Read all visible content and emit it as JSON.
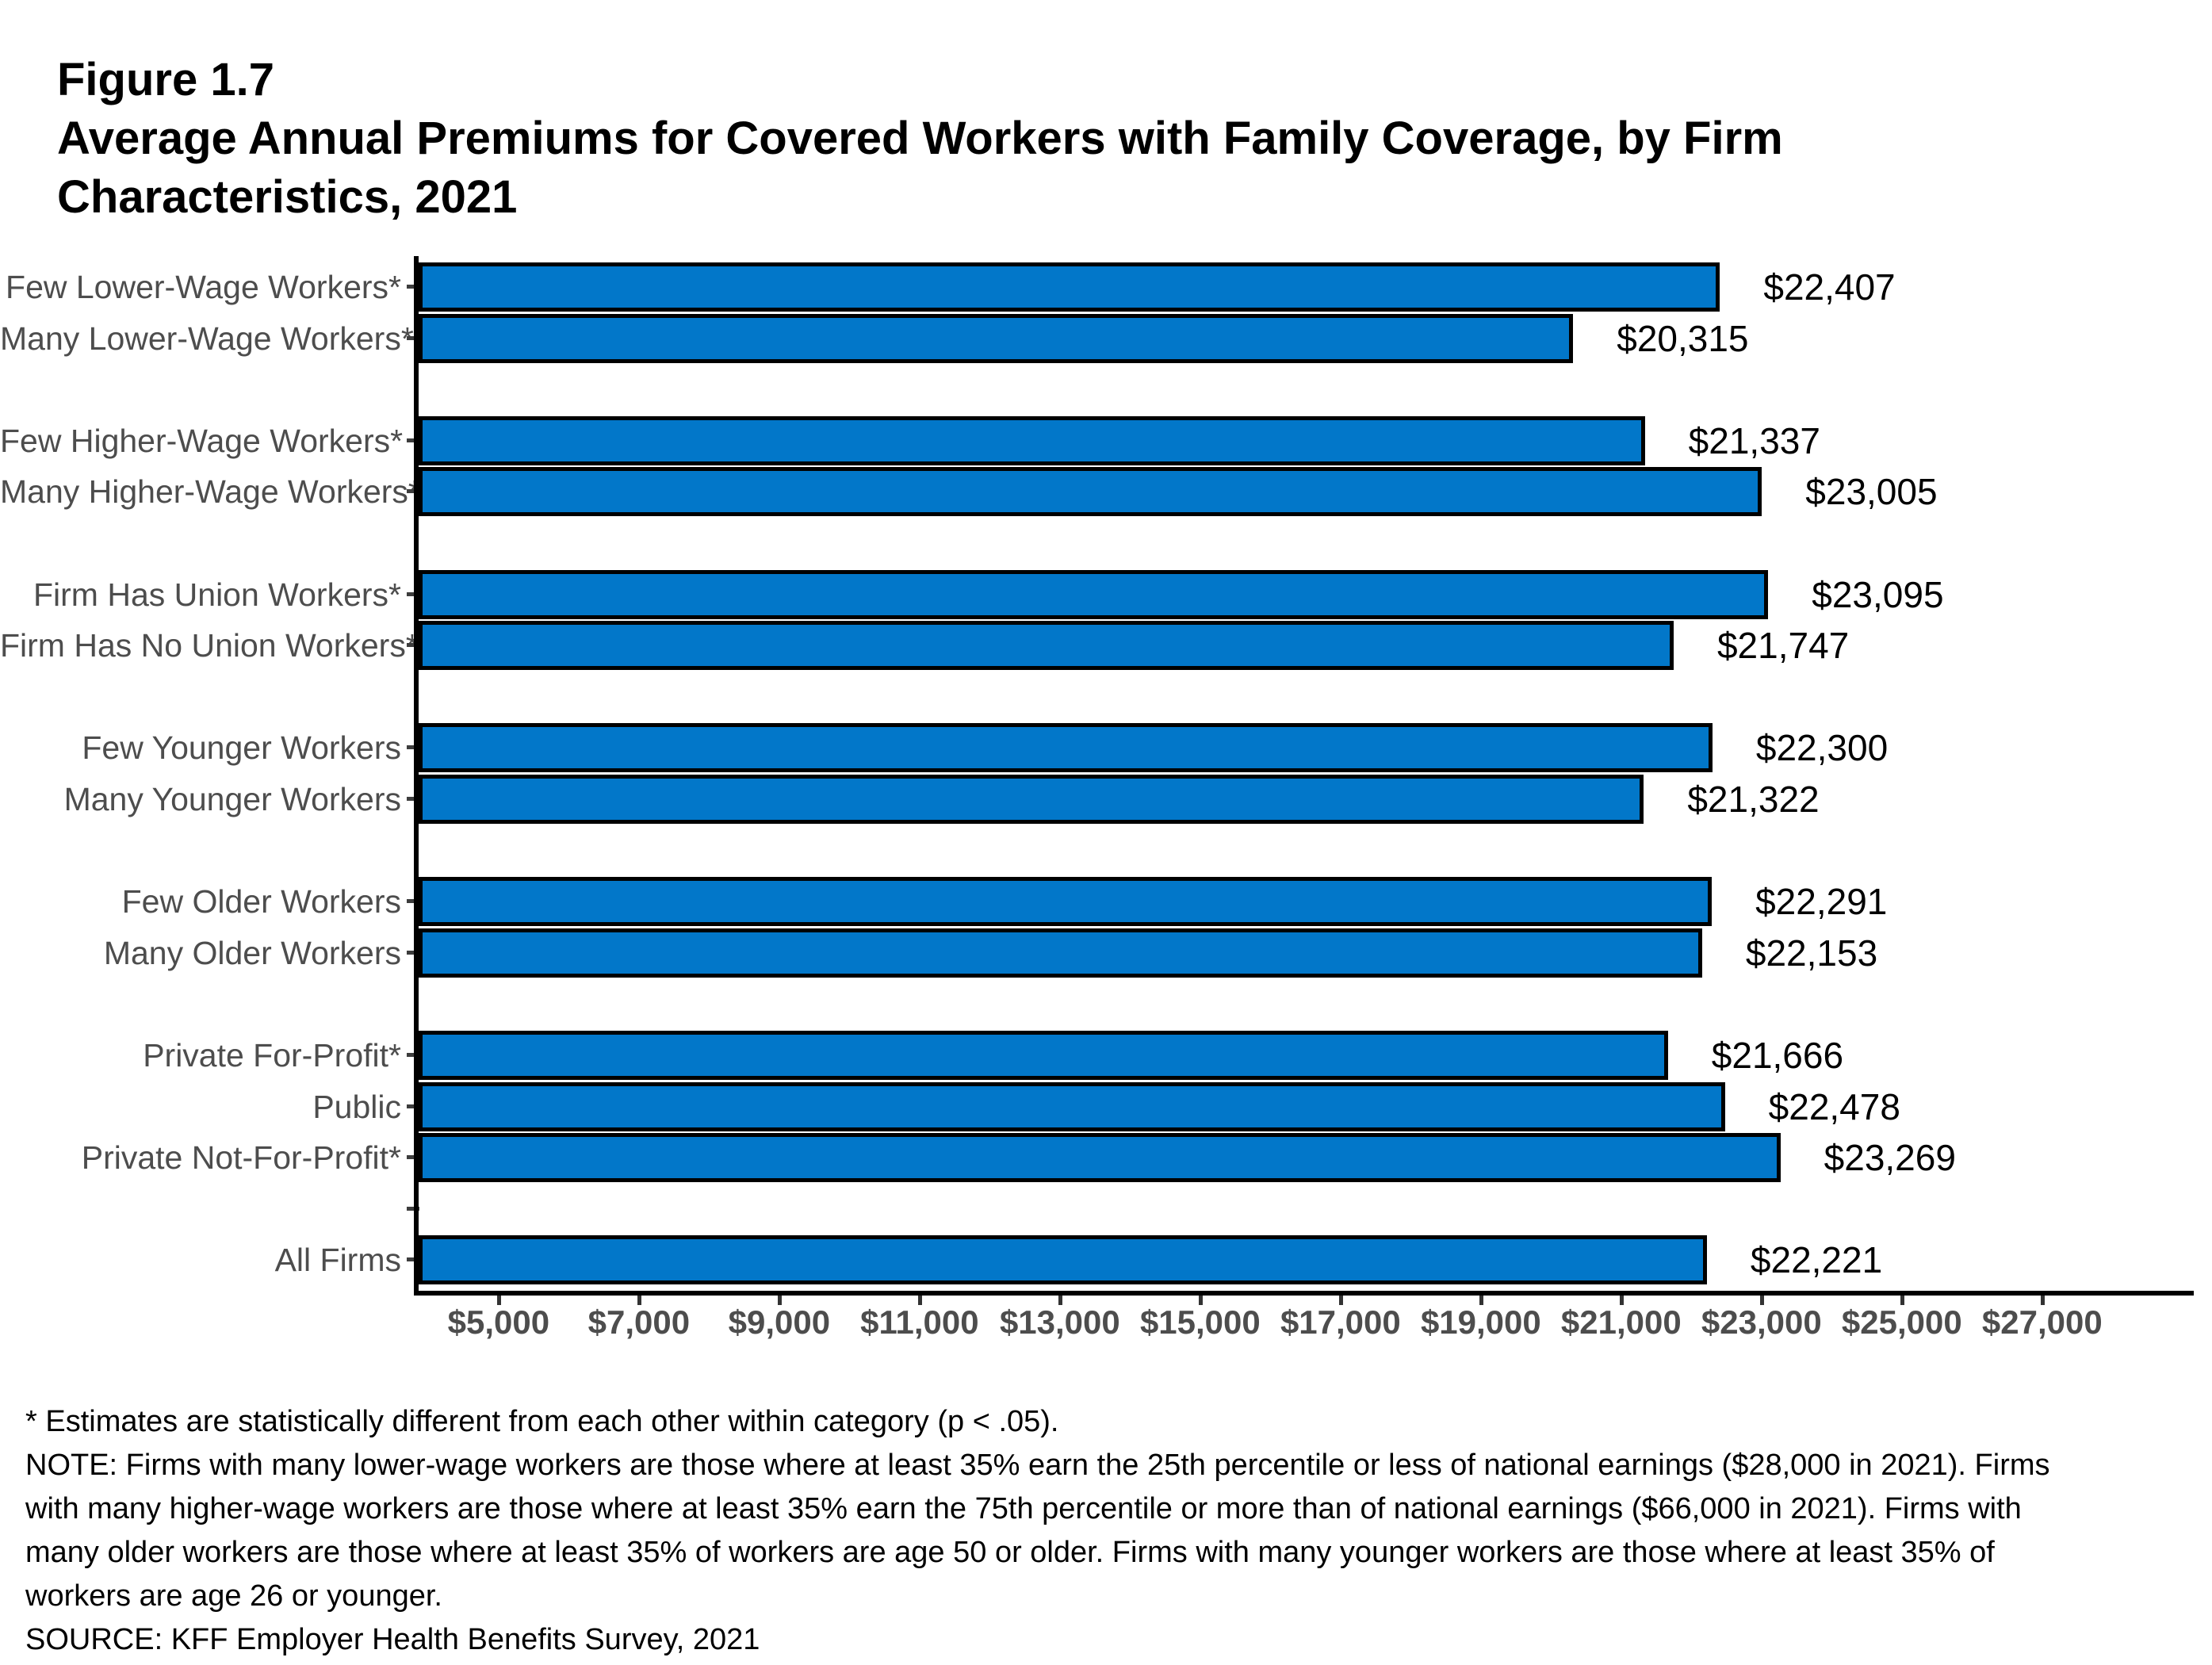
{
  "header": {
    "figure_label": "Figure 1.7",
    "title_lines": [
      "Average Annual Premiums for Covered Workers with Family Coverage, by Firm",
      "Characteristics, 2021"
    ]
  },
  "chart_data": {
    "type": "bar",
    "orientation": "horizontal",
    "title": "Average Annual Premiums for Covered Workers with Family Coverage, by Firm Characteristics, 2021",
    "xlabel": "",
    "ylabel": "",
    "grid": false,
    "x_domain": [
      3860,
      29160
    ],
    "bar_color": "#0277C9",
    "bar_border_color": "#000000",
    "axis_label_color": "#4D4D4D",
    "x_ticks": [
      {
        "label": "$5,000",
        "value": 5000
      },
      {
        "label": "$7,000",
        "value": 7000
      },
      {
        "label": "$9,000",
        "value": 9000
      },
      {
        "label": "$11,000",
        "value": 11000
      },
      {
        "label": "$13,000",
        "value": 13000
      },
      {
        "label": "$15,000",
        "value": 15000
      },
      {
        "label": "$17,000",
        "value": 17000
      },
      {
        "label": "$19,000",
        "value": 19000
      },
      {
        "label": "$21,000",
        "value": 21000
      },
      {
        "label": "$23,000",
        "value": 23000
      },
      {
        "label": "$25,000",
        "value": 25000
      },
      {
        "label": "$27,000",
        "value": 27000
      }
    ],
    "rows": [
      {
        "label": "Few Lower-Wage Workers*",
        "value": 22407,
        "value_label": "$22,407",
        "tick": true
      },
      {
        "label": "Many Lower-Wage Workers*",
        "value": 20315,
        "value_label": "$20,315",
        "tick": true
      },
      {
        "label": "",
        "value": null,
        "value_label": "",
        "tick": false
      },
      {
        "label": "Few Higher-Wage Workers*",
        "value": 21337,
        "value_label": "$21,337",
        "tick": true
      },
      {
        "label": "Many Higher-Wage Workers*",
        "value": 23005,
        "value_label": "$23,005",
        "tick": true
      },
      {
        "label": "",
        "value": null,
        "value_label": "",
        "tick": false
      },
      {
        "label": "Firm Has Union Workers*",
        "value": 23095,
        "value_label": "$23,095",
        "tick": true
      },
      {
        "label": "Firm Has No Union Workers*",
        "value": 21747,
        "value_label": "$21,747",
        "tick": true
      },
      {
        "label": "",
        "value": null,
        "value_label": "",
        "tick": false
      },
      {
        "label": "Few Younger Workers",
        "value": 22300,
        "value_label": "$22,300",
        "tick": true
      },
      {
        "label": "Many Younger Workers",
        "value": 21322,
        "value_label": "$21,322",
        "tick": true
      },
      {
        "label": "",
        "value": null,
        "value_label": "",
        "tick": false
      },
      {
        "label": "Few Older Workers",
        "value": 22291,
        "value_label": "$22,291",
        "tick": true
      },
      {
        "label": "Many Older Workers",
        "value": 22153,
        "value_label": "$22,153",
        "tick": true
      },
      {
        "label": "",
        "value": null,
        "value_label": "",
        "tick": false
      },
      {
        "label": "Private For-Profit*",
        "value": 21666,
        "value_label": "$21,666",
        "tick": true
      },
      {
        "label": "Public",
        "value": 22478,
        "value_label": "$22,478",
        "tick": true
      },
      {
        "label": "Private Not-For-Profit*",
        "value": 23269,
        "value_label": "$23,269",
        "tick": true
      },
      {
        "label": "",
        "value": null,
        "value_label": "",
        "tick": true
      },
      {
        "label": "All Firms",
        "value": 22221,
        "value_label": "$22,221",
        "tick": true
      }
    ]
  },
  "footnotes": {
    "asterisk": "* Estimates are statistically different from each other within category (p < .05).",
    "note_lines": [
      "NOTE: Firms with many lower-wage workers are those where at least 35% earn the 25th percentile or less of national earnings ($28,000 in 2021). Firms",
      "with many higher-wage workers are those where at least 35% earn the 75th percentile or more than of national earnings ($66,000 in 2021). Firms with",
      "many older workers are those where at least 35% of workers are age 50 or older. Firms with many younger workers are those where at least 35% of",
      "workers are age 26 or younger."
    ],
    "source": "SOURCE: KFF Employer Health Benefits Survey, 2021"
  }
}
